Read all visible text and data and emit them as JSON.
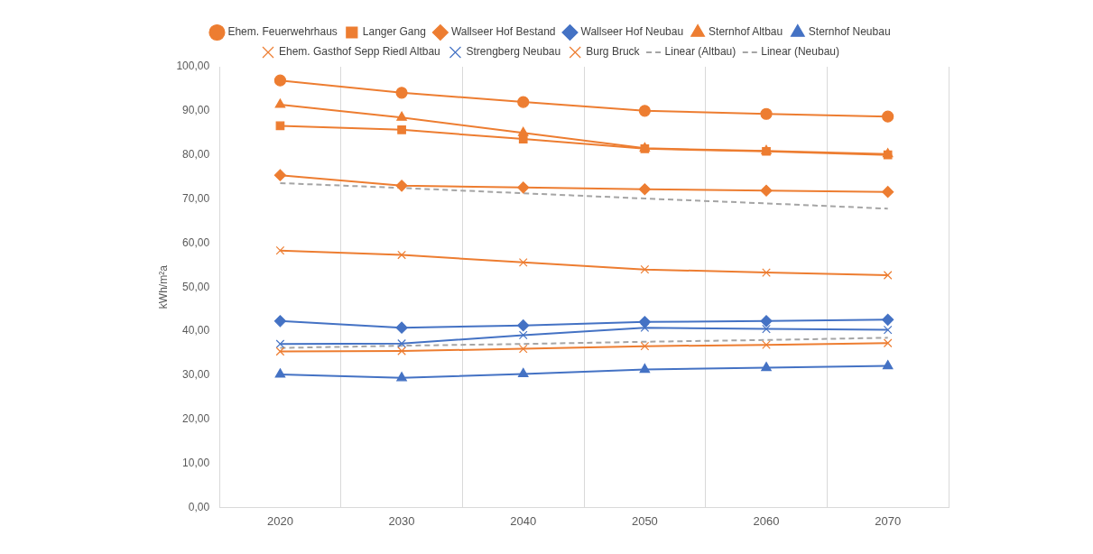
{
  "chart_data": {
    "type": "line",
    "ylabel": "kWh/m²a",
    "categories": [
      "2020",
      "2030",
      "2040",
      "2050",
      "2060",
      "2070"
    ],
    "ylim": [
      0,
      100
    ],
    "yticks": [
      {
        "value": 0,
        "label": "0,00"
      },
      {
        "value": 10,
        "label": "10,00"
      },
      {
        "value": 20,
        "label": "20,00"
      },
      {
        "value": 30,
        "label": "30,00"
      },
      {
        "value": 40,
        "label": "40,00"
      },
      {
        "value": 50,
        "label": "50,00"
      },
      {
        "value": 60,
        "label": "60,00"
      },
      {
        "value": 70,
        "label": "70,00"
      },
      {
        "value": 80,
        "label": "80,00"
      },
      {
        "value": 90,
        "label": "90,00"
      },
      {
        "value": 100,
        "label": "100,00"
      }
    ],
    "grid": "x",
    "legend": "top",
    "line_style": "solid",
    "series": [
      {
        "name": "Ehem. Feuerwehrhaus",
        "color": "#ed7d31",
        "marker": "circle",
        "values": [
          96.9,
          94.1,
          92.0,
          90.0,
          89.3,
          88.7
        ]
      },
      {
        "name": "Langer Gang",
        "color": "#ed7d31",
        "marker": "square",
        "values": [
          86.6,
          85.7,
          83.6,
          81.4,
          80.8,
          80.0
        ]
      },
      {
        "name": "Wallseer Hof Bestand",
        "color": "#ed7d31",
        "marker": "diamond",
        "values": [
          75.4,
          73.0,
          72.6,
          72.2,
          71.9,
          71.6
        ]
      },
      {
        "name": "Wallseer Hof Neubau",
        "color": "#4472c4",
        "marker": "diamond",
        "values": [
          42.3,
          40.8,
          41.3,
          42.1,
          42.3,
          42.6
        ]
      },
      {
        "name": "Sternhof Altbau",
        "color": "#ed7d31",
        "marker": "triangle",
        "values": [
          91.4,
          88.5,
          85.0,
          81.5,
          80.9,
          80.2
        ]
      },
      {
        "name": "Sternhof Neubau",
        "color": "#4472c4",
        "marker": "triangle",
        "values": [
          30.2,
          29.4,
          30.3,
          31.3,
          31.7,
          32.1
        ]
      },
      {
        "name": "Ehem. Gasthof Sepp Riedl Altbau",
        "color": "#ed7d31",
        "marker": "cross",
        "values": [
          35.4,
          35.5,
          36.0,
          36.6,
          36.9,
          37.3
        ]
      },
      {
        "name": "Strengberg Neubau",
        "color": "#4472c4",
        "marker": "cross",
        "values": [
          37.1,
          37.2,
          39.1,
          40.8,
          40.5,
          40.3
        ]
      },
      {
        "name": "Burg Bruck",
        "color": "#ed7d31",
        "marker": "cross",
        "values": [
          58.3,
          57.3,
          55.6,
          54.0,
          53.3,
          52.7
        ]
      },
      {
        "name": "Linear (Altbau)",
        "color": "#a5a5a5",
        "marker": "none",
        "line_style": "dashed",
        "values": [
          73.6,
          72.5,
          71.3,
          70.1,
          69.0,
          67.8
        ]
      },
      {
        "name": "Linear (Neubau)",
        "color": "#a5a5a5",
        "marker": "none",
        "line_style": "dashed",
        "values": [
          36.2,
          36.7,
          37.1,
          37.6,
          38.0,
          38.5
        ]
      }
    ]
  }
}
